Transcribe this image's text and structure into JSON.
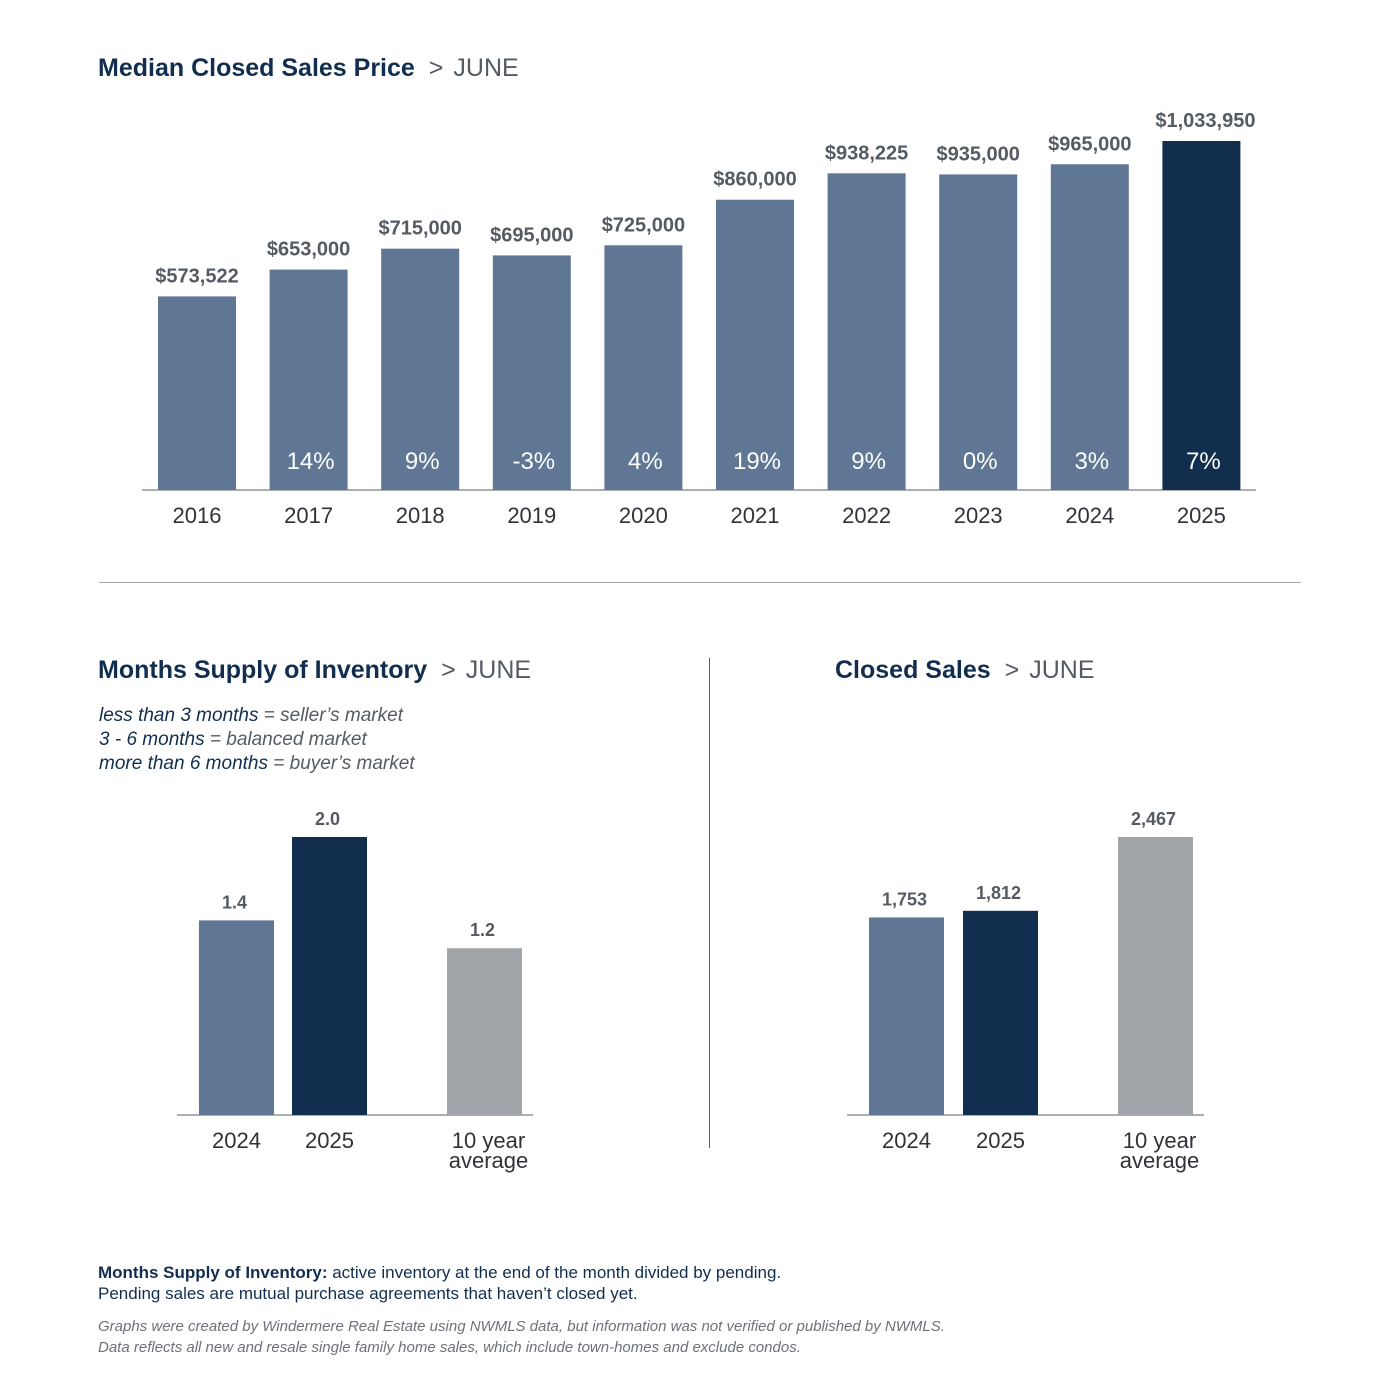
{
  "colors": {
    "past_bar": "#5f7795",
    "current_bar": "#122e4f",
    "average_bar": "#a1a5aa",
    "title": "#122e4f",
    "label": "#555b63",
    "axis": "#8f9399"
  },
  "median_price": {
    "title": "Median Closed Sales Price",
    "sep": ">",
    "month": "JUNE"
  },
  "months_supply": {
    "title": "Months Supply of Inventory",
    "sep": ">",
    "month": "JUNE",
    "legend": [
      {
        "key": "less than 3 months",
        "value": "= seller’s market"
      },
      {
        "key": "3 - 6 months",
        "value": "= balanced market"
      },
      {
        "key": "more than 6 months",
        "value": "= buyer’s market"
      }
    ]
  },
  "closed_sales": {
    "title": "Closed Sales",
    "sep": ">",
    "month": "JUNE"
  },
  "footnote": {
    "bold": "Months Supply of Inventory:",
    "line1": " active inventory at the end of the month divided by pending.",
    "line2": "Pending sales are mutual purchase agreements that haven’t closed yet.",
    "disclaimer1": "Graphs were created by Windermere Real Estate using NWMLS data, but information was not verified or published by NWMLS.",
    "disclaimer2": "Data reflects all new and resale single family home sales, which include town-homes and exclude condos."
  },
  "chart_data": [
    {
      "id": "median-price",
      "type": "bar",
      "categories": [
        "2016",
        "2017",
        "2018",
        "2019",
        "2020",
        "2021",
        "2022",
        "2023",
        "2024",
        "2025"
      ],
      "values": [
        573522,
        653000,
        715000,
        695000,
        725000,
        860000,
        938225,
        935000,
        965000,
        1033950
      ],
      "value_labels": [
        "$573,522",
        "$653,000",
        "$715,000",
        "$695,000",
        "$725,000",
        "$860,000",
        "$938,225",
        "$935,000",
        "$965,000",
        "$1,033,950"
      ],
      "change_labels": [
        "",
        "14%",
        "9%",
        "-3%",
        "4%",
        "19%",
        "9%",
        "0%",
        "3%",
        "7%"
      ],
      "highlight": [
        false,
        false,
        false,
        false,
        false,
        false,
        false,
        false,
        false,
        true
      ],
      "ylim": [
        0,
        1033950
      ],
      "grid": false
    },
    {
      "id": "months-supply",
      "type": "bar",
      "categories": [
        "2024",
        "2025",
        "10 year average"
      ],
      "values": [
        1.4,
        2.0,
        1.2
      ],
      "value_labels": [
        "1.4",
        "2.0",
        "1.2"
      ],
      "ylim": [
        0,
        2.0
      ],
      "grid": false
    },
    {
      "id": "closed-sales",
      "type": "bar",
      "categories": [
        "2024",
        "2025",
        "10 year average"
      ],
      "values": [
        1753,
        1812,
        2467
      ],
      "value_labels": [
        "1,753",
        "1,812",
        "2,467"
      ],
      "ylim": [
        0,
        2467
      ],
      "grid": false
    }
  ]
}
